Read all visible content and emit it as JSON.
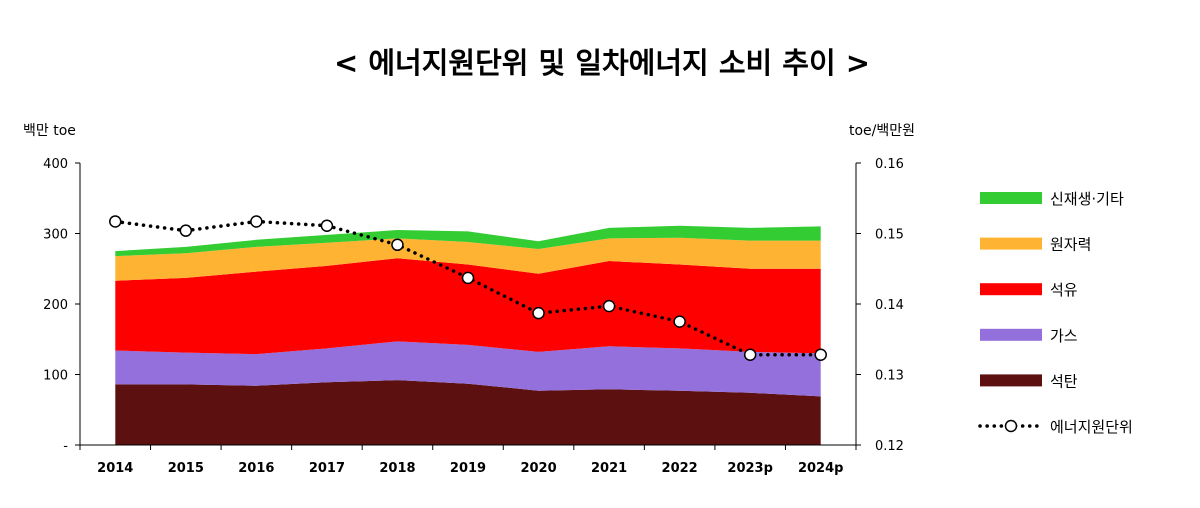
{
  "chart_data": {
    "type": "area",
    "title": "< 에너지원단위 및 일차에너지 소비 추이 >",
    "y_left_unit": "백만 toe",
    "y_right_unit": "toe/백만원",
    "categories": [
      "2014",
      "2015",
      "2016",
      "2017",
      "2018",
      "2019",
      "2020",
      "2021",
      "2022",
      "2023p",
      "2024p"
    ],
    "y_left": {
      "range": [
        0,
        400
      ],
      "ticks": [
        "-",
        "100",
        "200",
        "300",
        "400"
      ]
    },
    "y_right": {
      "range": [
        0.12,
        0.16
      ],
      "ticks": [
        "0.12",
        "0.13",
        "0.14",
        "0.15",
        "0.16"
      ]
    },
    "stack_order": [
      "석탄",
      "가스",
      "석유",
      "원자력",
      "신재생·기타"
    ],
    "series": [
      {
        "name": "석탄",
        "color": "#5c1010",
        "values": [
          86,
          86,
          84,
          89,
          92,
          87,
          77,
          79,
          77,
          74,
          69
        ]
      },
      {
        "name": "가스",
        "color": "#9370db",
        "values": [
          48,
          45,
          45,
          48,
          55,
          55,
          55,
          61,
          60,
          58,
          61
        ]
      },
      {
        "name": "석유",
        "color": "#ff0000",
        "values": [
          99,
          106,
          117,
          117,
          118,
          114,
          111,
          121,
          119,
          118,
          120
        ]
      },
      {
        "name": "원자력",
        "color": "#ffb333",
        "values": [
          35,
          35,
          35,
          33,
          28,
          32,
          35,
          32,
          38,
          40,
          40
        ]
      },
      {
        "name": "신재생·기타",
        "color": "#33cc33",
        "values": [
          7,
          9,
          10,
          11,
          12,
          15,
          11,
          15,
          17,
          18,
          20
        ]
      }
    ],
    "line_series": {
      "name": "에너지원단위",
      "axis": "right",
      "values": [
        0.1517,
        0.1504,
        0.1517,
        0.1511,
        0.1484,
        0.1437,
        0.1387,
        0.1397,
        0.1375,
        0.1328,
        0.1328
      ]
    },
    "legend_position": "right",
    "legend_order": [
      "신재생·기타",
      "원자력",
      "석유",
      "가스",
      "석탄",
      "에너지원단위"
    ]
  }
}
